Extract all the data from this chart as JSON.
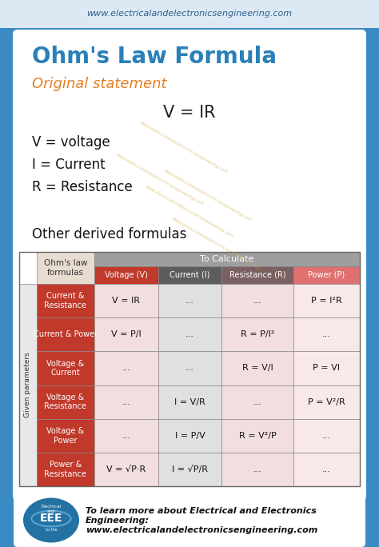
{
  "bg_blue": "#3a8bc4",
  "bg_light_strip": "#dce9f5",
  "white": "#ffffff",
  "header_url": "www.electricalandelectronicsengineering.com",
  "title": "Ohm's Law Formula",
  "subtitle": "Original statement",
  "formula_main": "V = IR",
  "vars": [
    "V = voltage",
    "I = Current",
    "R = Resistance"
  ],
  "section2_title": "Other derived formulas",
  "col_header_labels": [
    "Voltage (V)",
    "Current (I)",
    "Resistance (R)",
    "Power (P)"
  ],
  "col_header_colors": [
    "#c0392b",
    "#5d5d5d",
    "#7a6060",
    "#e07070"
  ],
  "row_labels": [
    "Current &\nResistance",
    "Current & Power",
    "Voltage &\nCurrent",
    "Voltage &\nResistance",
    "Voltage &\nPower",
    "Power &\nResistance"
  ],
  "row_label_color": "#c0392b",
  "ohms_law_cell_color": "#e8dcd0",
  "to_calc_cell_color": "#9e9e9e",
  "data_cell_colors": [
    "#f2dede",
    "#e0e0e0",
    "#f2dede",
    "#f8e8e8"
  ],
  "table_data": [
    [
      "V = IR",
      "...",
      "...",
      "P = I²R"
    ],
    [
      "V = P/I",
      "...",
      "R = P/I²",
      "..."
    ],
    [
      "...",
      "...",
      "R = V/I",
      "P = VI"
    ],
    [
      "...",
      "I = V/R",
      "...",
      "P = V²/R"
    ],
    [
      "...",
      "I = P/V",
      "R = V²/P",
      "..."
    ],
    [
      "V = √P·R",
      "I = √P/R",
      "...",
      "..."
    ]
  ],
  "footer_text1": "To learn more about Electrical and Electronics",
  "footer_text2": "Engineering:",
  "footer_text3": "www.electricalandelectronicsengineering.com",
  "watermark": "www.electricalandelectronicsengineering.com",
  "logo_color": "#2471a3",
  "logo_ring_color": "#5ba3d0"
}
